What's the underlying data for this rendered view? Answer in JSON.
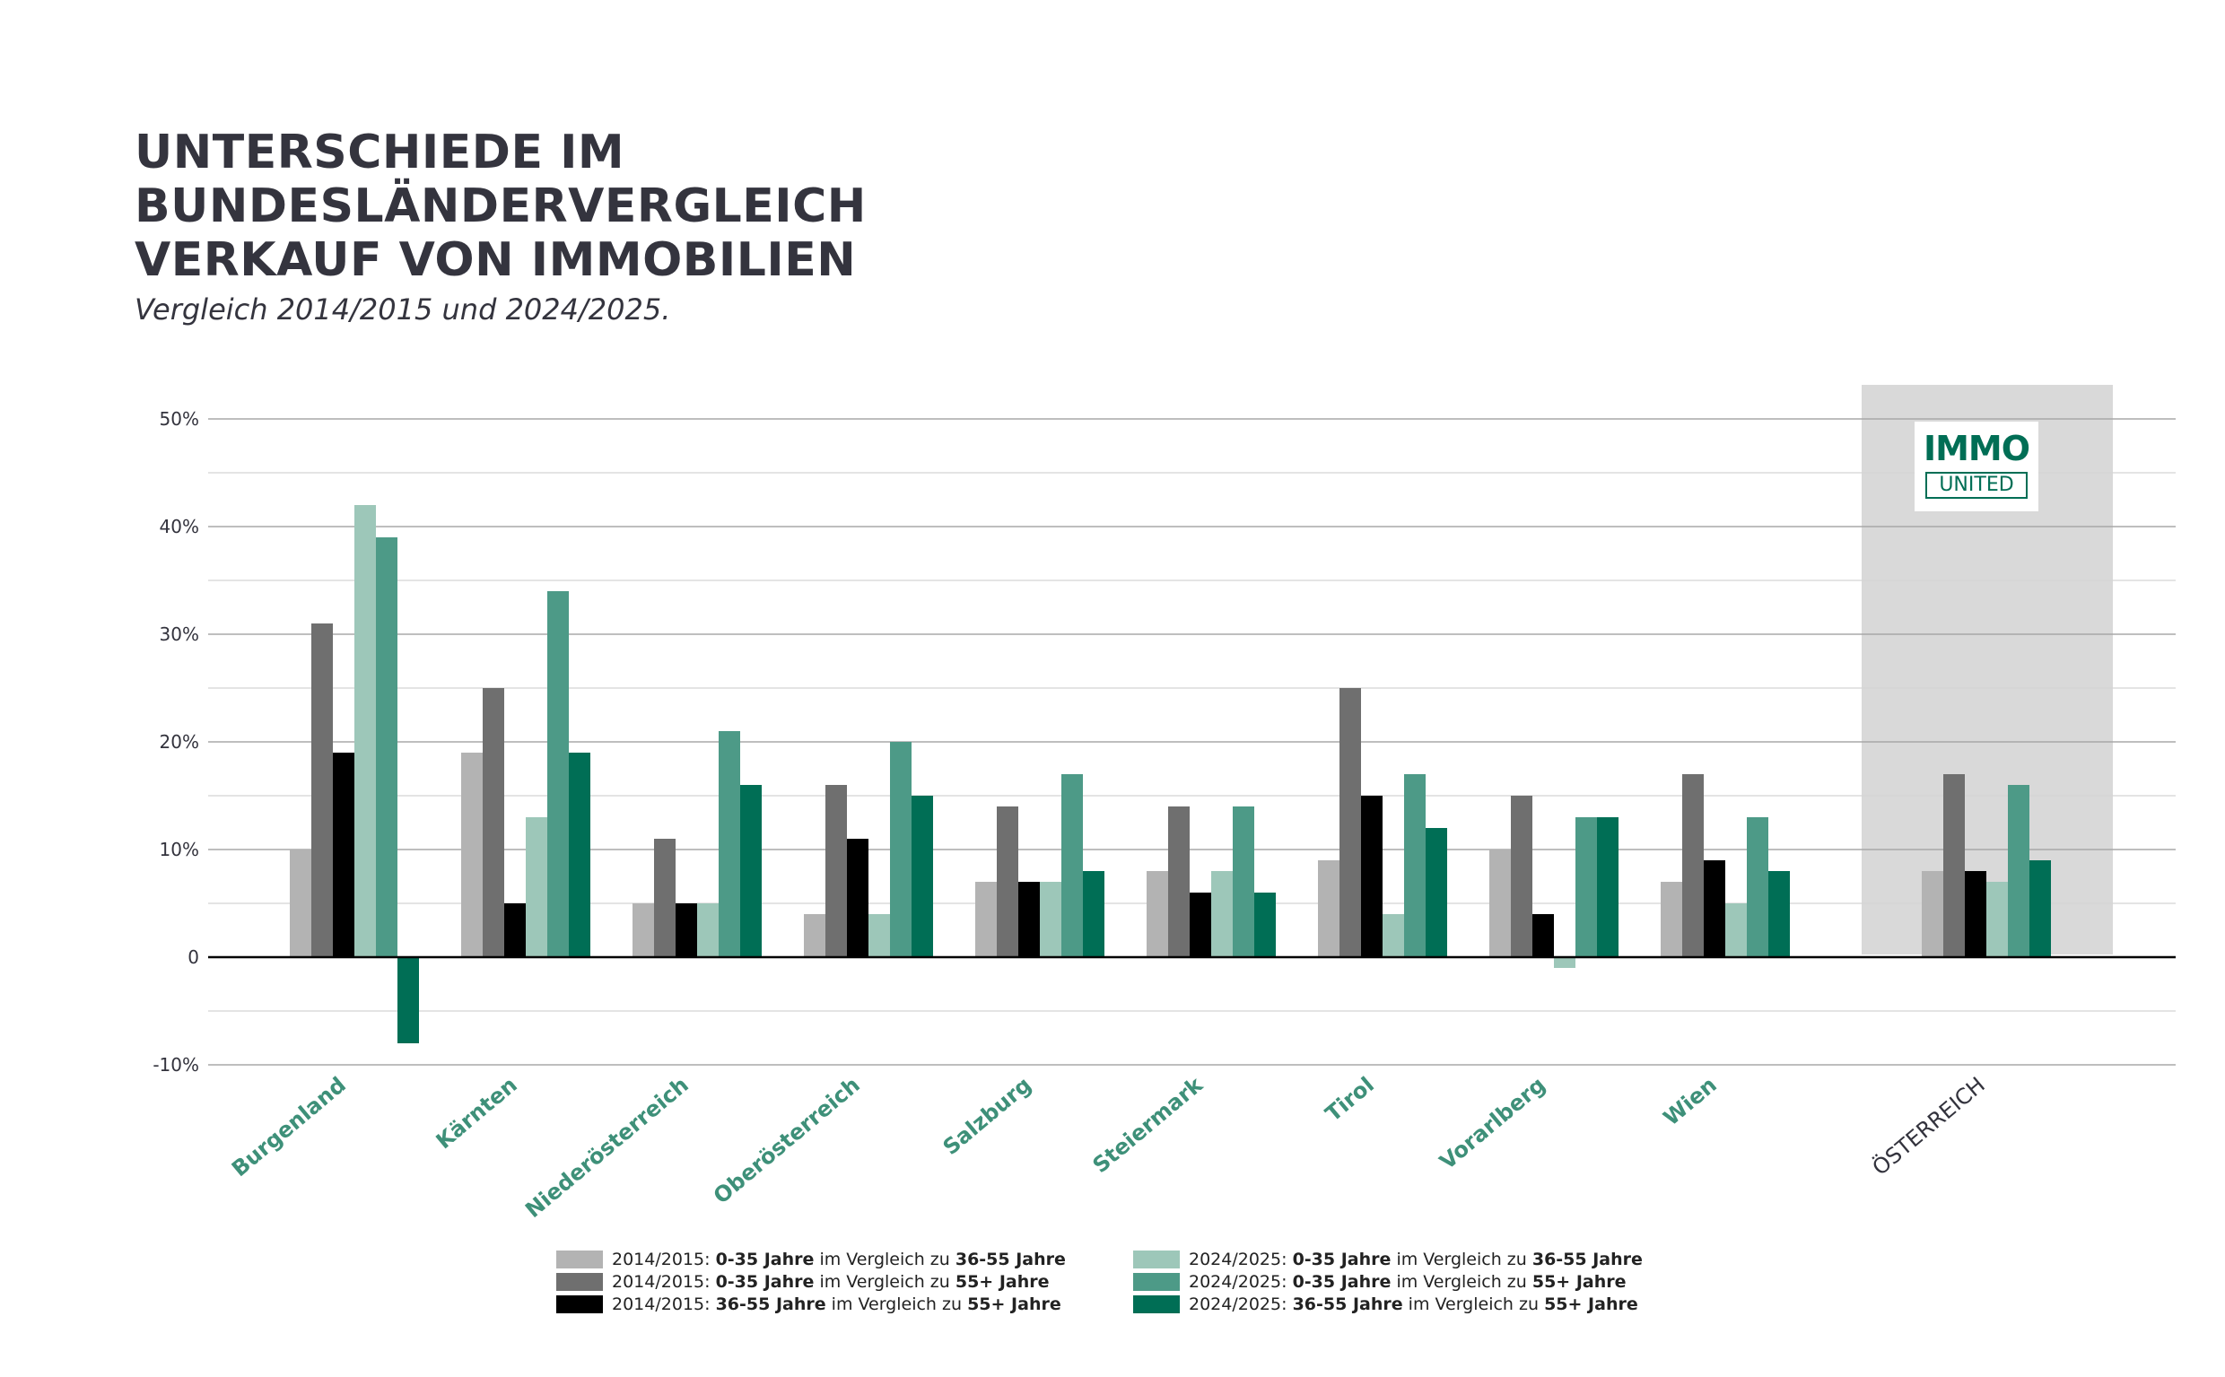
{
  "header": {
    "title_lines": [
      "UNTERSCHIEDE IM",
      "BUNDESLÄNDERVERGLEICH",
      "VERKAUF VON IMMOBILIEN"
    ],
    "subtitle": "Vergleich 2014/2015 und 2024/2025."
  },
  "logo": {
    "line1": "IMMO",
    "line2": "UNITED"
  },
  "chart_data": {
    "type": "bar",
    "title": "UNTERSCHIEDE IM BUNDESLÄNDERVERGLEICH VERKAUF VON IMMOBILIEN",
    "subtitle": "Vergleich 2014/2015 und 2024/2025.",
    "xlabel": "",
    "ylabel": "",
    "ylim": [
      -10,
      50
    ],
    "y_ticks": [
      {
        "value": 50,
        "label": "50%"
      },
      {
        "value": 40,
        "label": "40%"
      },
      {
        "value": 30,
        "label": "30%"
      },
      {
        "value": 20,
        "label": "20%"
      },
      {
        "value": 10,
        "label": "10%"
      },
      {
        "value": 0,
        "label": "0"
      },
      {
        "value": -10,
        "label": "-10%"
      }
    ],
    "grid": true,
    "highlighted_category": "ÖSTERREICH",
    "legend_position": "bottom",
    "categories": [
      "Burgenland",
      "Kärnten",
      "Niederösterreich",
      "Oberösterreich",
      "Salzburg",
      "Steiermark",
      "Tirol",
      "Vorarlberg",
      "Wien",
      "ÖSTERREICH"
    ],
    "series": [
      {
        "name": "2014/2015: 0-35 Jahre im Vergleich zu 36-55 Jahre",
        "legend_prefix": "2014/2015: ",
        "legend_b1": "0-35 Jahre",
        "legend_mid": " im Vergleich zu ",
        "legend_b2": "36-55 Jahre",
        "color": "#b3b3b3",
        "values": [
          10,
          19,
          5,
          4,
          7,
          8,
          9,
          10,
          7,
          8
        ]
      },
      {
        "name": "2014/2015: 0-35 Jahre im Vergleich zu 55+ Jahre",
        "legend_prefix": "2014/2015: ",
        "legend_b1": "0-35 Jahre",
        "legend_mid": " im Vergleich zu ",
        "legend_b2": "55+ Jahre",
        "color": "#6f6f6f",
        "values": [
          31,
          25,
          11,
          16,
          14,
          14,
          25,
          15,
          17,
          17
        ]
      },
      {
        "name": "2014/2015: 36-55 Jahre im Vergleich zu 55+ Jahre",
        "legend_prefix": "2014/2015: ",
        "legend_b1": "36-55 Jahre",
        "legend_mid": " im Vergleich zu ",
        "legend_b2": "55+ Jahre",
        "color": "#000000",
        "values": [
          19,
          5,
          5,
          11,
          7,
          6,
          15,
          4,
          9,
          8
        ]
      },
      {
        "name": "2024/2025: 0-35 Jahre im Vergleich zu 36-55 Jahre",
        "legend_prefix": "2024/2025: ",
        "legend_b1": "0-35 Jahre",
        "legend_mid": " im Vergleich zu ",
        "legend_b2": "36-55 Jahre",
        "color": "#9dc7b9",
        "values": [
          42,
          13,
          5,
          4,
          7,
          8,
          4,
          -1,
          5,
          7
        ]
      },
      {
        "name": "2024/2025: 0-35 Jahre im Vergleich zu 55+ Jahre",
        "legend_prefix": "2024/2025: ",
        "legend_b1": "0-35 Jahre",
        "legend_mid": " im Vergleich zu ",
        "legend_b2": "55+ Jahre",
        "color": "#4d9a87",
        "values": [
          39,
          34,
          21,
          20,
          17,
          14,
          17,
          13,
          13,
          16
        ]
      },
      {
        "name": "2024/2025: 36-55 Jahre im Vergleich zu 55+ Jahre",
        "legend_prefix": "2024/2025: ",
        "legend_b1": "36-55 Jahre",
        "legend_mid": " im Vergleich zu ",
        "legend_b2": "55+ Jahre",
        "color": "#006e55",
        "values": [
          -8,
          19,
          16,
          15,
          8,
          6,
          12,
          13,
          8,
          9
        ]
      }
    ]
  }
}
